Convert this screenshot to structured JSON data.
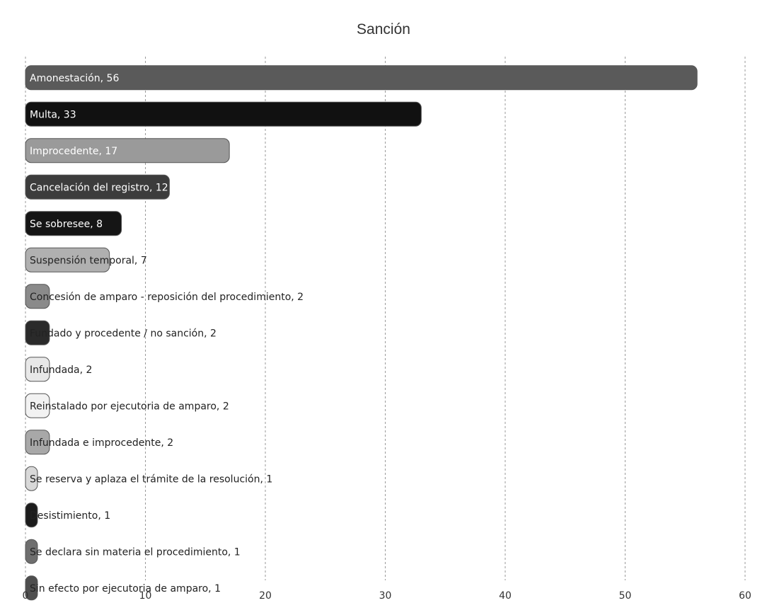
{
  "chart_data": {
    "type": "bar",
    "orientation": "horizontal",
    "title": "Sanción",
    "xlabel": "",
    "ylabel": "",
    "xlim": [
      0,
      60
    ],
    "x_ticks": [
      0,
      10,
      20,
      30,
      40,
      50,
      60
    ],
    "grid": true,
    "legend": "none",
    "categories": [
      "Amonestación",
      "Multa",
      "Improcedente",
      "Cancelación del registro",
      "Se sobresee",
      "Suspensión temporal",
      "Concesión de amparo - reposición del procedimiento",
      "Fundado y procedente / no sanción",
      "Infundada",
      "Reinstalado por ejecutoria de amparo",
      "Infundada e improcedente",
      "Se reserva y aplaza el trámite de la resolución",
      "Desistimiento",
      "Se declara sin materia el procedimiento",
      "Sin efecto por ejecutoria de amparo"
    ],
    "values": [
      56,
      33,
      17,
      12,
      8,
      7,
      2,
      2,
      2,
      2,
      2,
      1,
      1,
      1,
      1
    ],
    "data_labels": [
      "Amonestación, 56",
      "Multa, 33",
      "Improcedente, 17",
      "Cancelación del registro, 12",
      "Se sobresee, 8",
      "Suspensión temporal, 7",
      "Concesión de amparo - reposición del procedimiento, 2",
      "Fundado y procedente / no sanción, 2",
      "Infundada, 2",
      "Reinstalado por ejecutoria de amparo, 2",
      "Infundada e improcedente, 2",
      "Se reserva y aplaza el trámite de la resolución, 1",
      "Desistimiento, 1",
      "Se declara sin materia el procedimiento, 1",
      "Sin efecto por ejecutoria de amparo, 1"
    ],
    "colors": [
      "#5a5a5a",
      "#111111",
      "#9a9a9a",
      "#3c3c3c",
      "#151515",
      "#b0b0b0",
      "#8a8a8a",
      "#2a2a2a",
      "#e8e8e8",
      "#f2f2f2",
      "#a8a8a8",
      "#d8d8d8",
      "#1c1c1c",
      "#6e6e6e",
      "#4e4e4e"
    ],
    "label_colors": [
      "#ffffff",
      "#ffffff",
      "#ffffff",
      "#ffffff",
      "#ffffff",
      "#222222",
      "#222222",
      "#222222",
      "#222222",
      "#222222",
      "#222222",
      "#222222",
      "#222222",
      "#222222",
      "#222222"
    ]
  }
}
